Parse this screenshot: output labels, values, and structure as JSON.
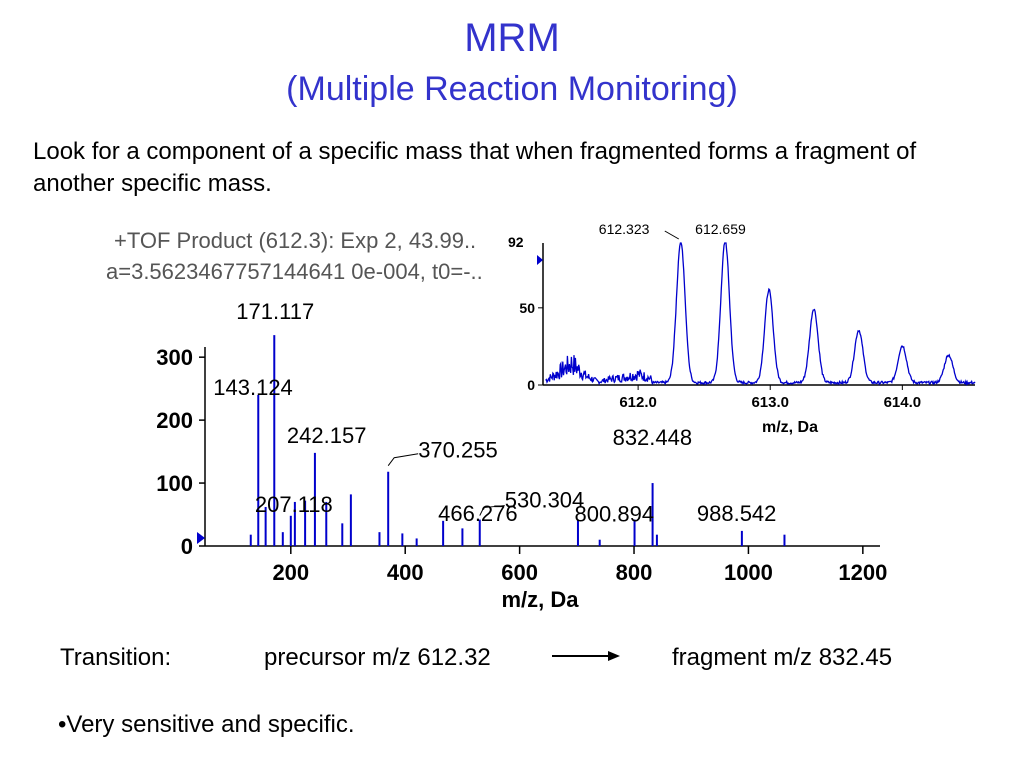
{
  "slide": {
    "title": "MRM",
    "subtitle": "(Multiple Reaction Monitoring)",
    "intro": "Look for a component of a specific mass that when fragmented forms a fragment of another specific mass.",
    "transition_label": "Transition:",
    "precursor": "precursor m/z 612.32",
    "fragment": "fragment m/z 832.45",
    "bullet": "•Very sensitive and specific."
  },
  "colors": {
    "title": "#3333cc",
    "spectrum": "#0000cc",
    "axis": "#000000",
    "header_text": "#555555"
  },
  "chart_data": [
    {
      "type": "bar",
      "header": [
        "+TOF Product (612.3): Exp 2, 43.99..",
        "a=3.5623467757144641 0e-004, t0=-.."
      ],
      "xlabel": "m/z, Da",
      "ylabel": "",
      "xlim": [
        50,
        1230
      ],
      "ylim": [
        0,
        340
      ],
      "xticks": [
        200,
        400,
        600,
        800,
        1000,
        1200
      ],
      "yticks": [
        0,
        100,
        200,
        300
      ],
      "peaks": [
        {
          "x": 143.124,
          "y": 240,
          "label": "143.124"
        },
        {
          "x": 171.117,
          "y": 335,
          "label": "171.117"
        },
        {
          "x": 207.118,
          "y": 70,
          "label": "207.118"
        },
        {
          "x": 242.157,
          "y": 148,
          "label": "242.157"
        },
        {
          "x": 370.255,
          "y": 118,
          "label": "370.255"
        },
        {
          "x": 466.276,
          "y": 40,
          "label": "466.276"
        },
        {
          "x": 530.304,
          "y": 42,
          "label": "530.304"
        },
        {
          "x": 800.894,
          "y": 42,
          "label": "800.894"
        },
        {
          "x": 832.448,
          "y": 100,
          "label": "832.448"
        },
        {
          "x": 988.542,
          "y": 24,
          "label": "988.542"
        },
        {
          "x": 130,
          "y": 18
        },
        {
          "x": 156,
          "y": 62
        },
        {
          "x": 186,
          "y": 22
        },
        {
          "x": 200,
          "y": 48
        },
        {
          "x": 225,
          "y": 72
        },
        {
          "x": 262,
          "y": 70
        },
        {
          "x": 290,
          "y": 36
        },
        {
          "x": 305,
          "y": 82
        },
        {
          "x": 355,
          "y": 22
        },
        {
          "x": 395,
          "y": 20
        },
        {
          "x": 420,
          "y": 12
        },
        {
          "x": 500,
          "y": 28
        },
        {
          "x": 702,
          "y": 42
        },
        {
          "x": 740,
          "y": 10
        },
        {
          "x": 840,
          "y": 18
        },
        {
          "x": 1063,
          "y": 18
        }
      ]
    },
    {
      "type": "line",
      "header": [
        "92"
      ],
      "xlabel": "m/z, Da",
      "xlim": [
        611.28,
        614.55
      ],
      "ylim": [
        0,
        92
      ],
      "xticks": [
        612.0,
        613.0,
        614.0
      ],
      "yticks": [
        0,
        50
      ],
      "peak_labels": [
        {
          "x": 612.323,
          "label": "612.323"
        },
        {
          "x": 612.659,
          "label": "612.659"
        }
      ],
      "peaks": [
        {
          "x": 612.323,
          "y": 92
        },
        {
          "x": 612.659,
          "y": 92
        },
        {
          "x": 612.99,
          "y": 60
        },
        {
          "x": 613.33,
          "y": 48
        },
        {
          "x": 613.67,
          "y": 34
        },
        {
          "x": 614.0,
          "y": 24
        },
        {
          "x": 614.35,
          "y": 18
        }
      ],
      "baseline": [
        {
          "x": 611.3,
          "y": 3
        },
        {
          "x": 611.4,
          "y": 8
        },
        {
          "x": 611.5,
          "y": 14
        },
        {
          "x": 611.6,
          "y": 6
        },
        {
          "x": 611.7,
          "y": 2
        },
        {
          "x": 611.8,
          "y": 4
        },
        {
          "x": 611.9,
          "y": 5
        },
        {
          "x": 612.0,
          "y": 7
        },
        {
          "x": 612.1,
          "y": 4
        }
      ]
    }
  ]
}
